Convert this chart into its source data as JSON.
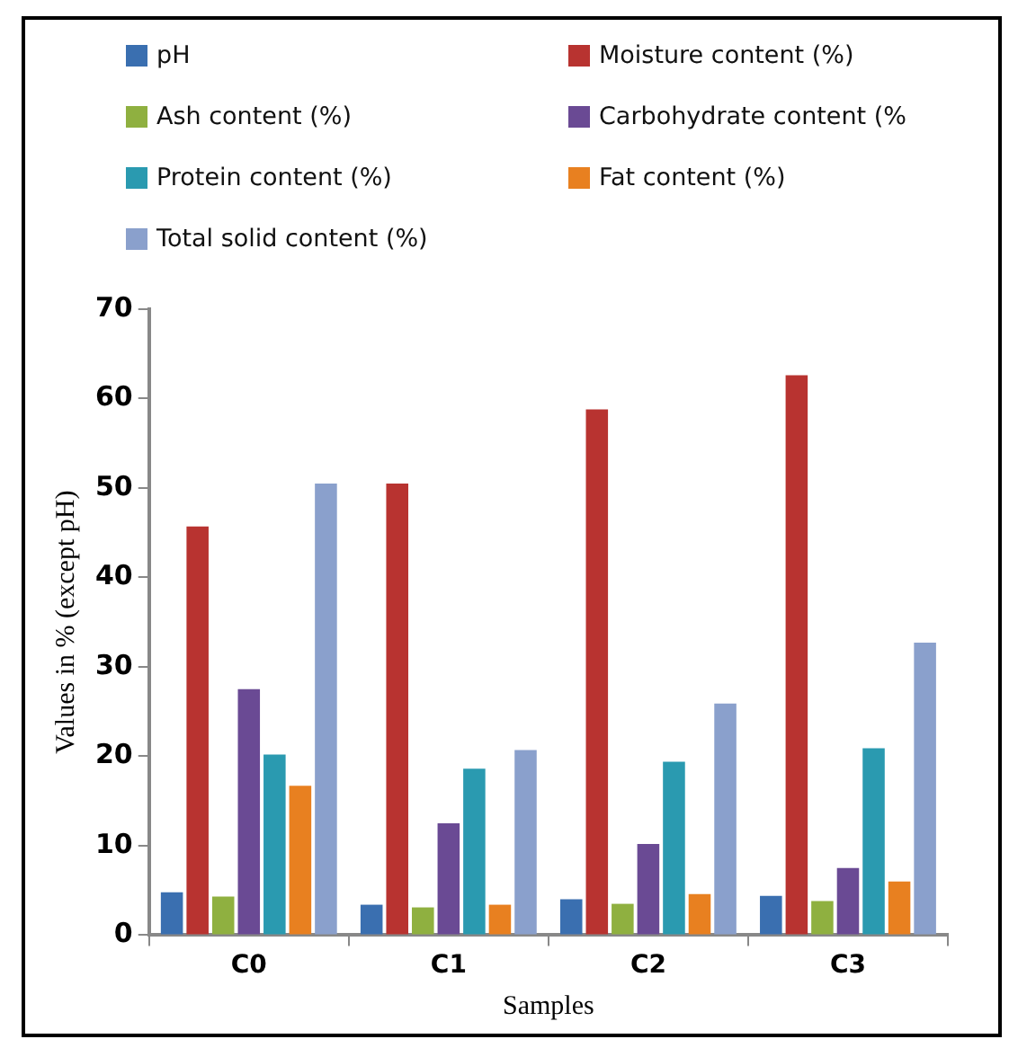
{
  "chart_data": {
    "type": "bar",
    "xlabel": "Samples",
    "ylabel": "Values in % (except pH)",
    "categories": [
      "C0",
      "C1",
      "C2",
      "C3"
    ],
    "series": [
      {
        "name": "pH",
        "color": "#3a6fb0",
        "values": [
          4.8,
          3.4,
          4.0,
          4.4
        ]
      },
      {
        "name": "Moisture content (%)",
        "color": "#b83330",
        "values": [
          45.7,
          50.5,
          58.8,
          62.6
        ]
      },
      {
        "name": "Ash content (%)",
        "color": "#8fb040",
        "values": [
          4.3,
          3.1,
          3.5,
          3.8
        ]
      },
      {
        "name": "Carbohydrate content (%",
        "color": "#6a4a94",
        "values": [
          27.5,
          12.5,
          10.2,
          7.5
        ]
      },
      {
        "name": "Protein content (%)",
        "color": "#2a9ab0",
        "values": [
          20.2,
          18.6,
          19.4,
          20.9
        ]
      },
      {
        "name": "Fat content (%)",
        "color": "#e88020",
        "values": [
          16.7,
          3.4,
          4.6,
          6.0
        ]
      },
      {
        "name": "Total solid content (%)",
        "color": "#8aa0cc",
        "values": [
          50.5,
          20.7,
          25.9,
          32.7
        ]
      }
    ],
    "ylim": [
      0,
      70
    ],
    "yticks": [
      0,
      10,
      20,
      30,
      40,
      50,
      60,
      70
    ],
    "grid": false,
    "legend": "top"
  }
}
